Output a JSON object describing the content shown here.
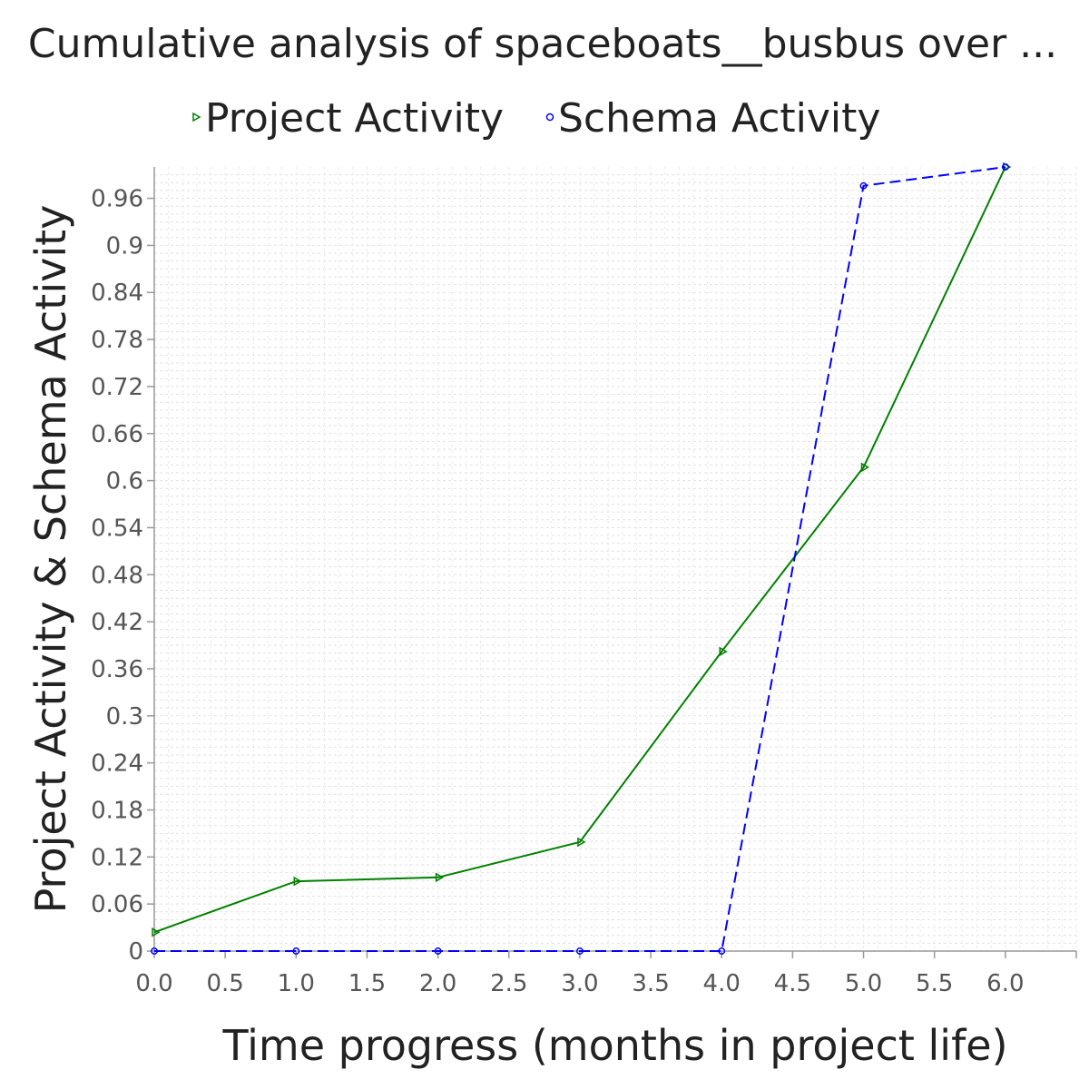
{
  "chart_data": {
    "type": "line",
    "title": "Cumulative analysis of spaceboats__busbus over ...",
    "xlabel": "Time progress (months in project life)",
    "ylabel": "Project Activity & Schema Activity",
    "xlim": [
      0,
      6.5
    ],
    "ylim": [
      0,
      1.0
    ],
    "x_ticks": [
      "0.0",
      "0.5",
      "1.0",
      "1.5",
      "2.0",
      "2.5",
      "3.0",
      "3.5",
      "4.0",
      "4.5",
      "5.0",
      "5.5",
      "6.0"
    ],
    "y_ticks": [
      "0",
      "0.06",
      "0.12",
      "0.18",
      "0.24",
      "0.3",
      "0.36",
      "0.42",
      "0.48",
      "0.54",
      "0.6",
      "0.66",
      "0.72",
      "0.78",
      "0.84",
      "0.9",
      "0.96"
    ],
    "grid": true,
    "legend_position": "top",
    "x": [
      0,
      1,
      2,
      3,
      4,
      5,
      6
    ],
    "series": [
      {
        "name": "Project Activity",
        "values": [
          0.024,
          0.089,
          0.094,
          0.139,
          0.382,
          0.617,
          1.0
        ],
        "color": "#008000",
        "line_style": "solid",
        "marker": "triangle-right"
      },
      {
        "name": "Schema Activity",
        "values": [
          0,
          0,
          0,
          0,
          0,
          0.976,
          1.0
        ],
        "color": "#0000ff",
        "line_style": "dashed",
        "marker": "circle"
      }
    ]
  }
}
